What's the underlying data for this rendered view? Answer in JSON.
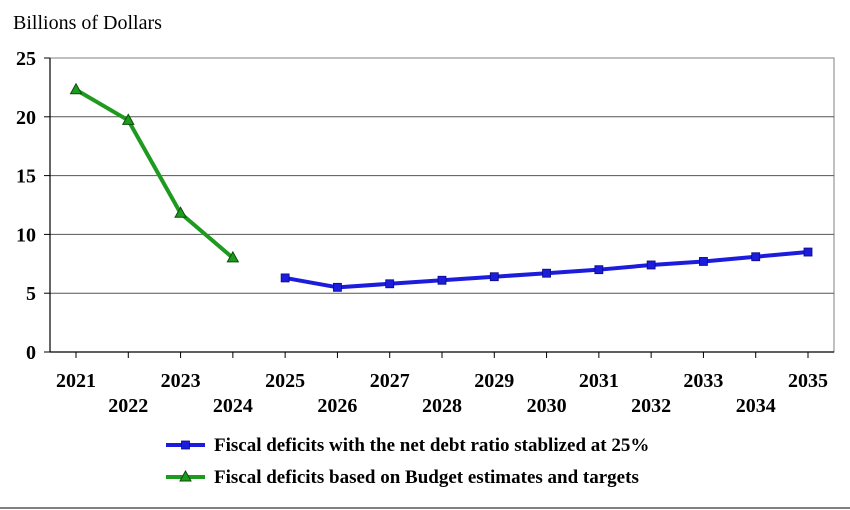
{
  "chart_data": {
    "type": "line",
    "ylabel": "Billions of Dollars",
    "ylim": [
      0,
      25
    ],
    "yticks": [
      "0",
      "5",
      "10",
      "15",
      "20",
      "25"
    ],
    "x": [
      2021,
      2022,
      2023,
      2024,
      2025,
      2026,
      2027,
      2028,
      2029,
      2030,
      2031,
      2032,
      2033,
      2034,
      2035
    ],
    "xtick_labels": [
      "2021",
      "2022",
      "2023",
      "2024",
      "2025",
      "2026",
      "2027",
      "2028",
      "2029",
      "2030",
      "2031",
      "2032",
      "2033",
      "2034",
      "2035"
    ],
    "grid": true,
    "legend_position": "bottom",
    "series": [
      {
        "name": "Fiscal deficits with the net debt ratio stablized at 25%",
        "color": "#1c1cdc",
        "marker": "square",
        "x": [
          2025,
          2026,
          2027,
          2028,
          2029,
          2030,
          2031,
          2032,
          2033,
          2034,
          2035
        ],
        "values": [
          6.3,
          5.5,
          5.8,
          6.1,
          6.4,
          6.7,
          7.0,
          7.4,
          7.7,
          8.1,
          8.5
        ]
      },
      {
        "name": "Fiscal deficits based on Budget estimates and targets",
        "color": "#1e9a1e",
        "marker": "triangle",
        "x": [
          2021,
          2022,
          2023,
          2024
        ],
        "values": [
          22.3,
          19.7,
          11.8,
          8.0
        ]
      }
    ]
  }
}
